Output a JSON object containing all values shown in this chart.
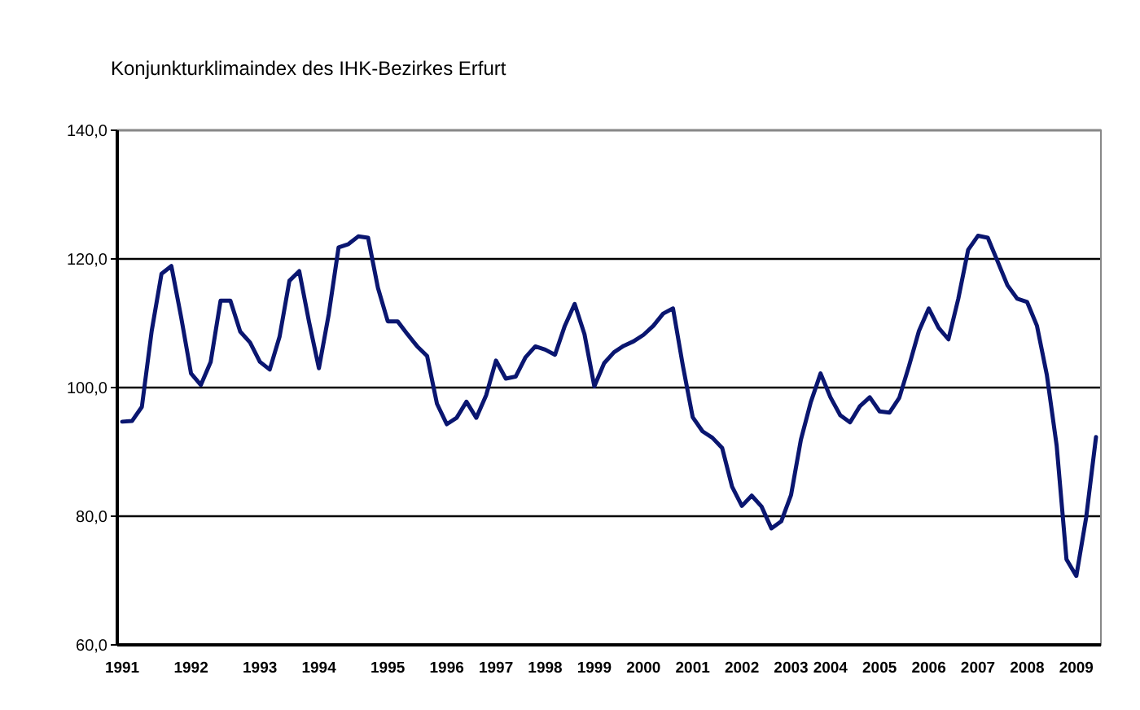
{
  "chart_data": {
    "type": "line",
    "title": "Konjunkturklimaindex des IHK-Bezirkes Erfurt",
    "categories": [
      "1991",
      null,
      null,
      null,
      null,
      null,
      null,
      "1992",
      null,
      null,
      null,
      null,
      null,
      null,
      "1993",
      null,
      null,
      null,
      null,
      null,
      "1994",
      null,
      null,
      null,
      null,
      null,
      null,
      "1995",
      null,
      null,
      null,
      null,
      null,
      "1996",
      null,
      null,
      null,
      null,
      "1997",
      null,
      null,
      null,
      null,
      "1998",
      null,
      null,
      null,
      null,
      "1999",
      null,
      null,
      null,
      null,
      "2000",
      null,
      null,
      null,
      null,
      "2001",
      null,
      null,
      null,
      null,
      "2002",
      null,
      null,
      null,
      null,
      "2003",
      null,
      null,
      null,
      "2004",
      null,
      null,
      null,
      null,
      "2005",
      null,
      null,
      null,
      null,
      "2006",
      null,
      null,
      null,
      null,
      "2007",
      null,
      null,
      null,
      null,
      "2008",
      null,
      null,
      null,
      null,
      "2009",
      null,
      null
    ],
    "series": [
      {
        "color": "#0a1670",
        "values": [
          94.7,
          94.8,
          97.0,
          108.8,
          117.7,
          118.9,
          110.9,
          102.2,
          100.4,
          104.0,
          113.5,
          113.5,
          108.7,
          107.0,
          104.0,
          102.8,
          107.9,
          116.6,
          118.1,
          110.2,
          103.0,
          111.4,
          121.8,
          122.3,
          123.5,
          123.3,
          115.5,
          110.3,
          110.3,
          108.3,
          106.4,
          104.9,
          97.5,
          94.3,
          95.3,
          97.8,
          95.3,
          98.8,
          104.2,
          101.4,
          101.7,
          104.7,
          106.4,
          105.9,
          105.1,
          109.6,
          113.0,
          108.3,
          100.2,
          103.8,
          105.5,
          106.5,
          107.2,
          108.2,
          109.6,
          111.5,
          112.3,
          103.4,
          95.4,
          93.2,
          92.2,
          90.6,
          84.6,
          81.6,
          83.2,
          81.5,
          78.1,
          79.2,
          83.3,
          91.9,
          97.7,
          102.2,
          98.5,
          95.7,
          94.6,
          97.1,
          98.5,
          96.3,
          96.1,
          98.4,
          103.4,
          108.8,
          112.3,
          109.3,
          107.5,
          113.8,
          121.4,
          123.6,
          123.3,
          119.6,
          115.9,
          113.8,
          113.3,
          109.6,
          102.0,
          91.0,
          73.3,
          70.7,
          79.8,
          92.3
        ]
      }
    ],
    "ylim": [
      60,
      140
    ],
    "yticks": [
      {
        "value": 60,
        "label": "60,0"
      },
      {
        "value": 80,
        "label": "80,0"
      },
      {
        "value": 100,
        "label": "100,0"
      },
      {
        "value": 120,
        "label": "120,0"
      },
      {
        "value": 140,
        "label": "140,0"
      }
    ],
    "grid": "y",
    "marker": "none",
    "line_style": "solid"
  }
}
